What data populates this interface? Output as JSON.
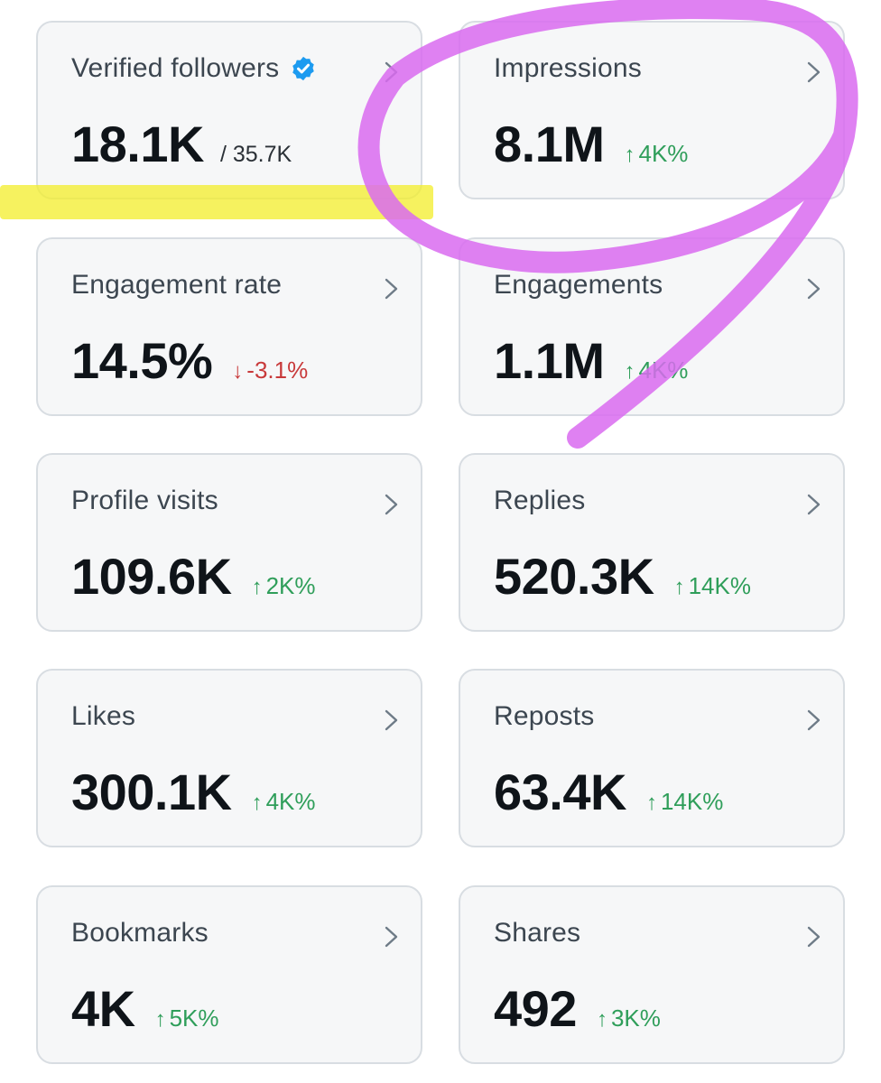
{
  "colors": {
    "card_bg": "#f6f7f8",
    "card_border": "#d8dde2",
    "label": "#3c4650",
    "value": "#0f1419",
    "up": "#2f9e5a",
    "down": "#c8393a",
    "verified_badge": "#1d9bf0",
    "highlighter_yellow": "#f3ee2a",
    "marker_purple": "#d96bf0"
  },
  "cards": {
    "verified_followers": {
      "label": "Verified followers",
      "value": "18.1K",
      "suffix": "/ 35.7K",
      "icon": "verified-badge-icon"
    },
    "impressions": {
      "label": "Impressions",
      "value": "8.1M",
      "arrow": "↑",
      "change": "4K%"
    },
    "engagement_rate": {
      "label": "Engagement rate",
      "value": "14.5%",
      "arrow": "↓",
      "change": "-3.1%"
    },
    "engagements": {
      "label": "Engagements",
      "value": "1.1M",
      "arrow": "↑",
      "change": "4K%"
    },
    "profile_visits": {
      "label": "Profile visits",
      "value": "109.6K",
      "arrow": "↑",
      "change": "2K%"
    },
    "replies": {
      "label": "Replies",
      "value": "520.3K",
      "arrow": "↑",
      "change": "14K%"
    },
    "likes": {
      "label": "Likes",
      "value": "300.1K",
      "arrow": "↑",
      "change": "4K%"
    },
    "reposts": {
      "label": "Reposts",
      "value": "63.4K",
      "arrow": "↑",
      "change": "14K%"
    },
    "bookmarks": {
      "label": "Bookmarks",
      "value": "4K",
      "arrow": "↑",
      "change": "5K%"
    },
    "shares": {
      "label": "Shares",
      "value": "492",
      "arrow": "↑",
      "change": "3K%"
    }
  }
}
